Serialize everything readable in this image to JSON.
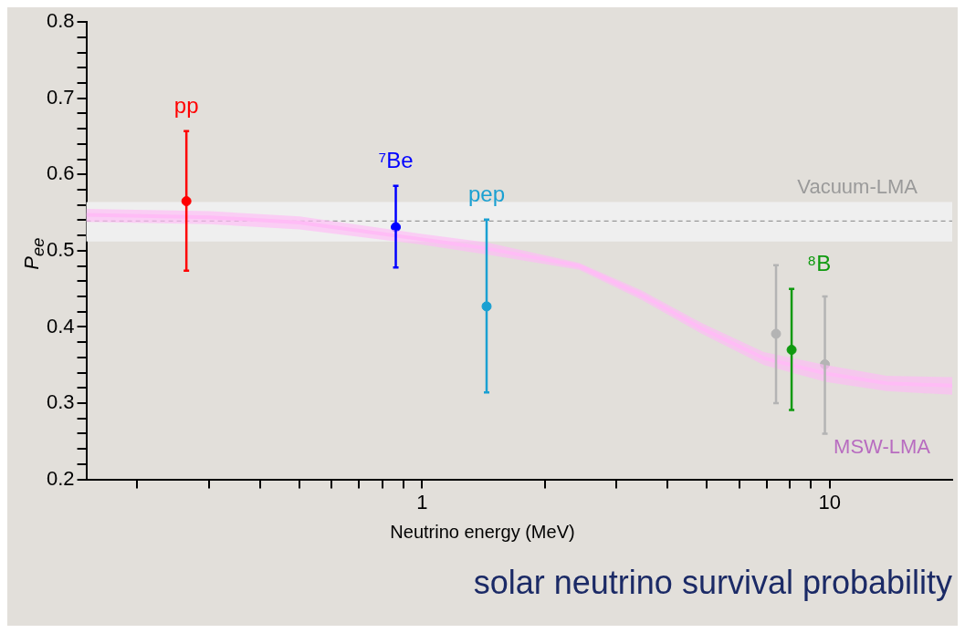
{
  "chart_data": {
    "type": "scatter",
    "title": "solar neutrino survival probability",
    "xlabel": "Neutrino energy (MeV)",
    "ylabel": "P$_{ee}$",
    "log": "x",
    "grid": false,
    "legend": false,
    "marker": "circle",
    "xlim": [
      0.15,
      20
    ],
    "ylim": [
      0.2,
      0.8
    ],
    "xticks": [
      {
        "value": 0.2,
        "label": null
      },
      {
        "value": 0.3,
        "label": null
      },
      {
        "value": 0.4,
        "label": null
      },
      {
        "value": 0.5,
        "label": null
      },
      {
        "value": 0.6,
        "label": null
      },
      {
        "value": 0.7,
        "label": null
      },
      {
        "value": 0.8,
        "label": null
      },
      {
        "value": 0.9,
        "label": null
      },
      1,
      {
        "value": 2,
        "label": null
      },
      {
        "value": 3,
        "label": null
      },
      {
        "value": 4,
        "label": null
      },
      {
        "value": 5,
        "label": null
      },
      {
        "value": 6,
        "label": null
      },
      {
        "value": 7,
        "label": null
      },
      {
        "value": 8,
        "label": null
      },
      {
        "value": 9,
        "label": null
      },
      10
    ],
    "yticks": [
      0.2,
      {
        "value": 0.22,
        "label": null
      },
      {
        "value": 0.24,
        "label": null
      },
      {
        "value": 0.26,
        "label": null
      },
      {
        "value": 0.28,
        "label": null
      },
      0.3,
      {
        "value": 0.32,
        "label": null
      },
      {
        "value": 0.34,
        "label": null
      },
      {
        "value": 0.36,
        "label": null
      },
      {
        "value": 0.38,
        "label": null
      },
      0.4,
      {
        "value": 0.42,
        "label": null
      },
      {
        "value": 0.44,
        "label": null
      },
      {
        "value": 0.46,
        "label": null
      },
      {
        "value": 0.48,
        "label": null
      },
      0.5,
      {
        "value": 0.52,
        "label": null
      },
      {
        "value": 0.54,
        "label": null
      },
      {
        "value": 0.56,
        "label": null
      },
      {
        "value": 0.58,
        "label": null
      },
      0.6,
      {
        "value": 0.62,
        "label": null
      },
      {
        "value": 0.64,
        "label": null
      },
      {
        "value": 0.66,
        "label": null
      },
      {
        "value": 0.68,
        "label": null
      },
      0.7,
      {
        "value": 0.72,
        "label": null
      },
      {
        "value": 0.74,
        "label": null
      },
      {
        "value": 0.76,
        "label": null
      },
      {
        "value": 0.78,
        "label": null
      },
      0.8
    ],
    "bands": [
      {
        "axis": "y",
        "from": 0.512,
        "to": 0.564,
        "label": "Vacuum-LMA",
        "color": "#efefef"
      }
    ],
    "ref_lines": [
      {
        "axis": "y",
        "value": 0.539,
        "color": "#999999",
        "line_style": "dashed"
      }
    ],
    "series": [
      {
        "name": "MSW-LMA",
        "type": "line",
        "marker": "none",
        "color": "#ffbcf6",
        "x": [
          0.15,
          0.3,
          0.5,
          1,
          1.44,
          2.43,
          3.45,
          4.86,
          6.9,
          9.8,
          13.8,
          20
        ],
        "values": [
          0.547,
          0.544,
          0.537,
          0.515,
          0.503,
          0.48,
          0.442,
          0.398,
          0.359,
          0.339,
          0.326,
          0.323
        ],
        "lower": [
          0.538,
          0.535,
          0.528,
          0.508,
          0.495,
          0.475,
          0.436,
          0.391,
          0.35,
          0.328,
          0.316,
          0.311
        ],
        "upper": [
          0.555,
          0.552,
          0.545,
          0.522,
          0.511,
          0.484,
          0.448,
          0.405,
          0.367,
          0.35,
          0.336,
          0.334
        ]
      },
      {
        "name": "pp",
        "color": "#ff0000",
        "x": [
          0.264
        ],
        "values": [
          0.565
        ],
        "errors": [
          [
            0.474,
            0.657
          ]
        ]
      },
      {
        "name": "⁷Be",
        "color": "#0000ff",
        "x": [
          0.862
        ],
        "values": [
          0.531
        ],
        "errors": [
          [
            0.478,
            0.585
          ]
        ]
      },
      {
        "name": "pep",
        "color": "#1aa0d2",
        "x": [
          1.44
        ],
        "values": [
          0.427
        ],
        "errors": [
          [
            0.314,
            0.541
          ]
        ]
      },
      {
        "color": "#b4b4b4",
        "x": [
          7.39,
          9.74
        ],
        "values": [
          0.391,
          0.351
        ],
        "errors": [
          [
            0.3,
            0.481
          ],
          [
            0.26,
            0.44
          ]
        ]
      },
      {
        "name": "⁸B",
        "color": "#109a10",
        "x": [
          8.07
        ],
        "values": [
          0.37
        ],
        "errors": [
          [
            0.291,
            0.45
          ]
        ]
      }
    ]
  }
}
